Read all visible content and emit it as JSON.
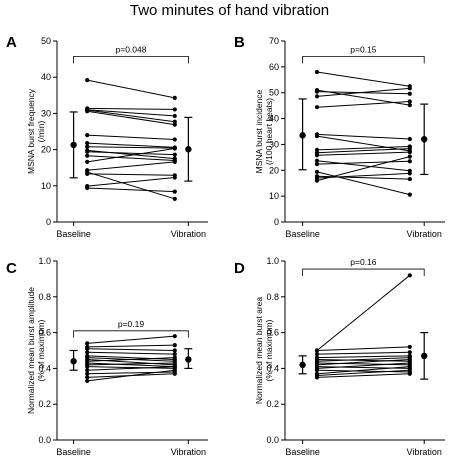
{
  "figure_title": "Two minutes of hand vibration",
  "chart_data": [
    {
      "panel": "A",
      "type": "scatter",
      "ylabel": [
        "MSNA burst frequency",
        "(/min)"
      ],
      "categories": [
        "Baseline",
        "Vibration"
      ],
      "ylim": [
        0,
        50
      ],
      "yticks": [
        0,
        10,
        20,
        30,
        40,
        50
      ],
      "ytick_labels": [
        "0",
        "10",
        "20",
        "30",
        "40",
        "50"
      ],
      "pvalue": "p=0.048",
      "summary": {
        "baseline": {
          "mean": 21.3,
          "low": 12.2,
          "high": 30.4
        },
        "vibration": {
          "mean": 20.1,
          "low": 11.3,
          "high": 28.9
        }
      },
      "pairs": [
        [
          39.2,
          34.3
        ],
        [
          31.4,
          31.1
        ],
        [
          31.0,
          29.3
        ],
        [
          30.6,
          26.9
        ],
        [
          30.9,
          27.7
        ],
        [
          24.0,
          22.8
        ],
        [
          21.8,
          20.6
        ],
        [
          20.8,
          20.4
        ],
        [
          19.8,
          17.5
        ],
        [
          19.4,
          18.6
        ],
        [
          18.3,
          17.0
        ],
        [
          16.6,
          20.3
        ],
        [
          14.3,
          16.6
        ],
        [
          13.3,
          12.9
        ],
        [
          9.9,
          12.3
        ],
        [
          9.4,
          8.4
        ],
        [
          13.8,
          6.4
        ]
      ]
    },
    {
      "panel": "B",
      "type": "scatter",
      "ylabel": [
        "MSNA burst incidence",
        "(/100 heart beats)"
      ],
      "categories": [
        "Baseline",
        "Vibration"
      ],
      "ylim": [
        0,
        70
      ],
      "yticks": [
        0,
        10,
        20,
        30,
        40,
        50,
        60,
        70
      ],
      "ytick_labels": [
        "0",
        "10",
        "20",
        "30",
        "40",
        "50",
        "60",
        "70"
      ],
      "pvalue": "p=0.15",
      "summary": {
        "baseline": {
          "mean": 33.5,
          "low": 20.2,
          "high": 47.6
        },
        "vibration": {
          "mean": 32.0,
          "low": 18.4,
          "high": 45.6
        }
      },
      "pairs": [
        [
          58.0,
          52.5
        ],
        [
          51.0,
          45.2
        ],
        [
          50.4,
          49.6
        ],
        [
          48.6,
          51.7
        ],
        [
          44.4,
          46.6
        ],
        [
          33.9,
          32.1
        ],
        [
          33.2,
          27.5
        ],
        [
          27.9,
          29.2
        ],
        [
          26.8,
          28.4
        ],
        [
          25.8,
          27.0
        ],
        [
          23.7,
          19.8
        ],
        [
          22.4,
          23.5
        ],
        [
          17.7,
          16.6
        ],
        [
          17.0,
          18.8
        ],
        [
          16.0,
          25.3
        ],
        [
          19.4,
          10.6
        ]
      ]
    },
    {
      "panel": "C",
      "type": "scatter",
      "ylabel": [
        "Normalized mean burst amplitude",
        "(% of maximum)"
      ],
      "categories": [
        "Baseline",
        "Vibration"
      ],
      "ylim": [
        0,
        1.0
      ],
      "yticks": [
        0,
        0.2,
        0.4,
        0.6,
        0.8,
        1.0
      ],
      "ytick_labels": [
        "0.0",
        "0.2",
        "0.4",
        "0.6",
        "0.8",
        "1.0"
      ],
      "pvalue": "p=0.19",
      "summary": {
        "baseline": {
          "mean": 0.44,
          "low": 0.39,
          "high": 0.5
        },
        "vibration": {
          "mean": 0.45,
          "low": 0.4,
          "high": 0.51
        }
      },
      "pairs": [
        [
          0.54,
          0.58
        ],
        [
          0.52,
          0.53
        ],
        [
          0.51,
          0.5
        ],
        [
          0.49,
          0.48
        ],
        [
          0.47,
          0.45
        ],
        [
          0.46,
          0.44
        ],
        [
          0.45,
          0.42
        ],
        [
          0.44,
          0.46
        ],
        [
          0.43,
          0.41
        ],
        [
          0.42,
          0.43
        ],
        [
          0.41,
          0.4
        ],
        [
          0.39,
          0.41
        ],
        [
          0.37,
          0.38
        ],
        [
          0.35,
          0.37
        ],
        [
          0.33,
          0.39
        ]
      ]
    },
    {
      "panel": "D",
      "type": "scatter",
      "ylabel": [
        "Normalized mean burst area",
        "(% of maximum)"
      ],
      "categories": [
        "Baseline",
        "Vibration"
      ],
      "ylim": [
        0,
        1.0
      ],
      "yticks": [
        0,
        0.2,
        0.4,
        0.6,
        0.8,
        1.0
      ],
      "ytick_labels": [
        "0.0",
        "0.2",
        "0.4",
        "0.6",
        "0.8",
        "1.0"
      ],
      "pvalue": "p=0.16",
      "summary": {
        "baseline": {
          "mean": 0.42,
          "low": 0.37,
          "high": 0.47
        },
        "vibration": {
          "mean": 0.47,
          "low": 0.34,
          "high": 0.6
        }
      },
      "pairs": [
        [
          0.5,
          0.92
        ],
        [
          0.5,
          0.52
        ],
        [
          0.48,
          0.49
        ],
        [
          0.46,
          0.47
        ],
        [
          0.45,
          0.44
        ],
        [
          0.44,
          0.46
        ],
        [
          0.43,
          0.42
        ],
        [
          0.42,
          0.45
        ],
        [
          0.41,
          0.4
        ],
        [
          0.4,
          0.43
        ],
        [
          0.39,
          0.38
        ],
        [
          0.37,
          0.41
        ],
        [
          0.36,
          0.39
        ],
        [
          0.35,
          0.37
        ]
      ]
    }
  ]
}
